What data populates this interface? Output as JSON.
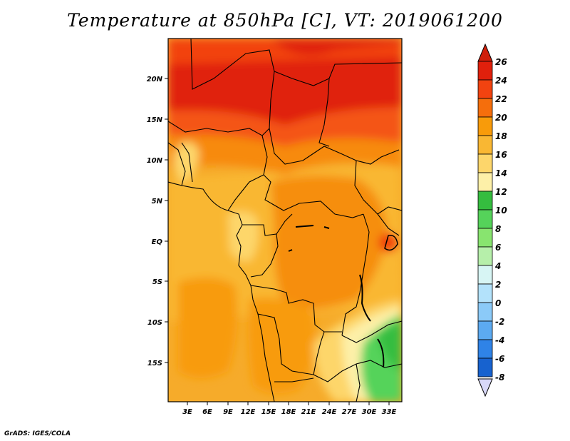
{
  "title": "Temperature at 850hPa [C], VT: 2019061200",
  "credit": "GrADS: IGES/COLA",
  "map": {
    "lat_labels": [
      "20N",
      "15N",
      "10N",
      "5N",
      "EQ",
      "5S",
      "10S",
      "15S"
    ],
    "lon_labels": [
      "3E",
      "6E",
      "9E",
      "12E",
      "15E",
      "18E",
      "21E",
      "24E",
      "27E",
      "30E",
      "33E"
    ]
  },
  "colorbar": {
    "labels": [
      "26",
      "24",
      "22",
      "20",
      "18",
      "16",
      "14",
      "12",
      "10",
      "8",
      "6",
      "4",
      "2",
      "0",
      "-2",
      "-4",
      "-6",
      "-8"
    ],
    "colors": [
      "#e0200c",
      "#f24310",
      "#f56e0c",
      "#f89b0a",
      "#f9b733",
      "#fdd66b",
      "#fdf0a8",
      "#35bd3f",
      "#55d35a",
      "#88e46f",
      "#b6efaa",
      "#d7f5f4",
      "#b3e2fb",
      "#8bcaf8",
      "#5caaf1",
      "#2f83e7",
      "#1762cf",
      "#0c40b5",
      "#06198a"
    ],
    "top_arrow_color": "#d01e0a",
    "bottom_arrow_color": "#d8d8f8"
  }
}
